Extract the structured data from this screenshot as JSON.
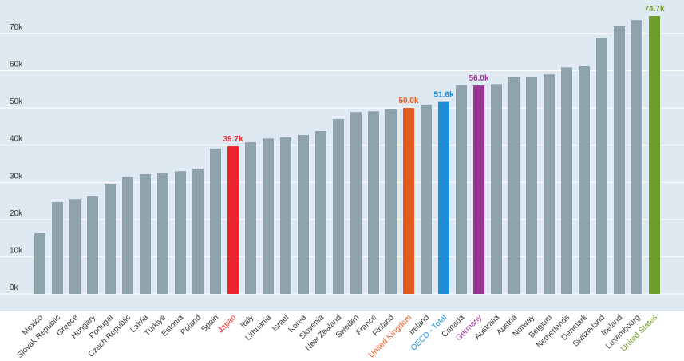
{
  "chart_data": {
    "type": "bar",
    "categories": [
      "Mexico",
      "Slovak Republic",
      "Greece",
      "Hungary",
      "Portugal",
      "Czech Republic",
      "Latvia",
      "Türkiye",
      "Estonia",
      "Poland",
      "Spain",
      "Japan",
      "Italy",
      "Lithuania",
      "Israel",
      "Korea",
      "Slovenia",
      "New Zealand",
      "Sweden",
      "France",
      "Finland",
      "United Kingdom",
      "Ireland",
      "OECD - Total",
      "Canada",
      "Germany",
      "Australia",
      "Austria",
      "Norway",
      "Belgium",
      "Netherlands",
      "Denmark",
      "Switzerland",
      "Iceland",
      "Luxembourg",
      "United States"
    ],
    "values": [
      16300,
      24700,
      25500,
      26200,
      29600,
      31500,
      32200,
      32400,
      33000,
      33500,
      39100,
      39700,
      40800,
      41800,
      42100,
      42700,
      43800,
      47000,
      48900,
      49100,
      49600,
      50000,
      50900,
      51600,
      56100,
      56000,
      56400,
      58200,
      58400,
      59000,
      60900,
      61200,
      68900,
      71900,
      73600,
      74700
    ],
    "value_labels": [
      null,
      null,
      null,
      null,
      null,
      null,
      null,
      null,
      null,
      null,
      null,
      "39.7k",
      null,
      null,
      null,
      null,
      null,
      null,
      null,
      null,
      null,
      "50.0k",
      null,
      "51.6k",
      null,
      "56.0k",
      null,
      null,
      null,
      null,
      null,
      null,
      null,
      null,
      null,
      "74.7k"
    ],
    "color": "#8fa3ad",
    "colors": [
      "#8fa3ad",
      "#8fa3ad",
      "#8fa3ad",
      "#8fa3ad",
      "#8fa3ad",
      "#8fa3ad",
      "#8fa3ad",
      "#8fa3ad",
      "#8fa3ad",
      "#8fa3ad",
      "#8fa3ad",
      "#e8262b",
      "#8fa3ad",
      "#8fa3ad",
      "#8fa3ad",
      "#8fa3ad",
      "#8fa3ad",
      "#8fa3ad",
      "#8fa3ad",
      "#8fa3ad",
      "#8fa3ad",
      "#e35a1f",
      "#8fa3ad",
      "#1e8fd6",
      "#8fa3ad",
      "#9b3493",
      "#8fa3ad",
      "#8fa3ad",
      "#8fa3ad",
      "#8fa3ad",
      "#8fa3ad",
      "#8fa3ad",
      "#8fa3ad",
      "#8fa3ad",
      "#8fa3ad",
      "#6f9e2c"
    ],
    "ylim": [
      0,
      79000
    ],
    "yticks": [
      {
        "value": 0,
        "label": "0k"
      },
      {
        "value": 10000,
        "label": "10k"
      },
      {
        "value": 20000,
        "label": "20k"
      },
      {
        "value": 30000,
        "label": "30k"
      },
      {
        "value": 40000,
        "label": "40k"
      },
      {
        "value": 50000,
        "label": "50k"
      },
      {
        "value": 60000,
        "label": "60k"
      },
      {
        "value": 70000,
        "label": "70k"
      }
    ],
    "grid": true
  }
}
